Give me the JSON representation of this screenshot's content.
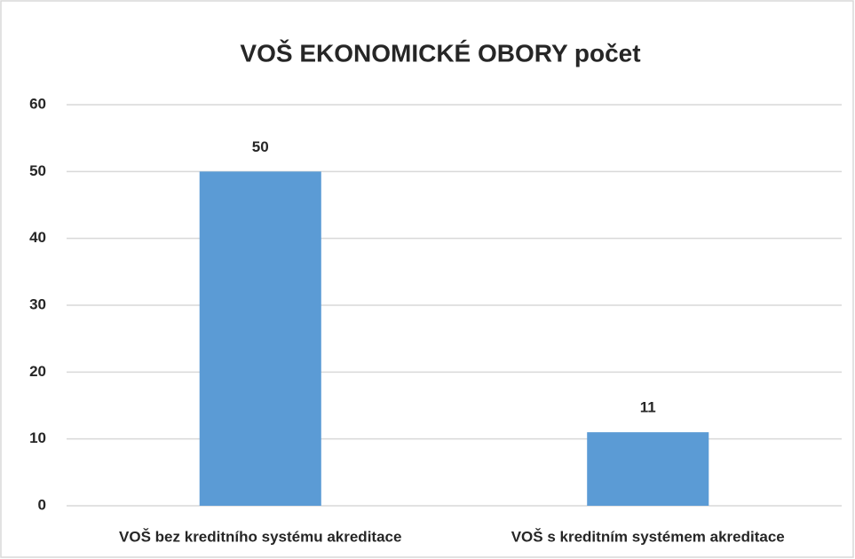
{
  "chart_data": {
    "type": "bar",
    "title": "VOŠ EKONOMICKÉ OBORY počet",
    "categories": [
      "VOŠ bez kreditního systému akreditace",
      "VOŠ s kreditním systémem akreditace"
    ],
    "values": [
      50,
      11
    ],
    "color": "#5b9bd5",
    "ylim": [
      0,
      60
    ],
    "yticks": [
      0,
      10,
      20,
      30,
      40,
      50,
      60
    ],
    "grid": true
  }
}
